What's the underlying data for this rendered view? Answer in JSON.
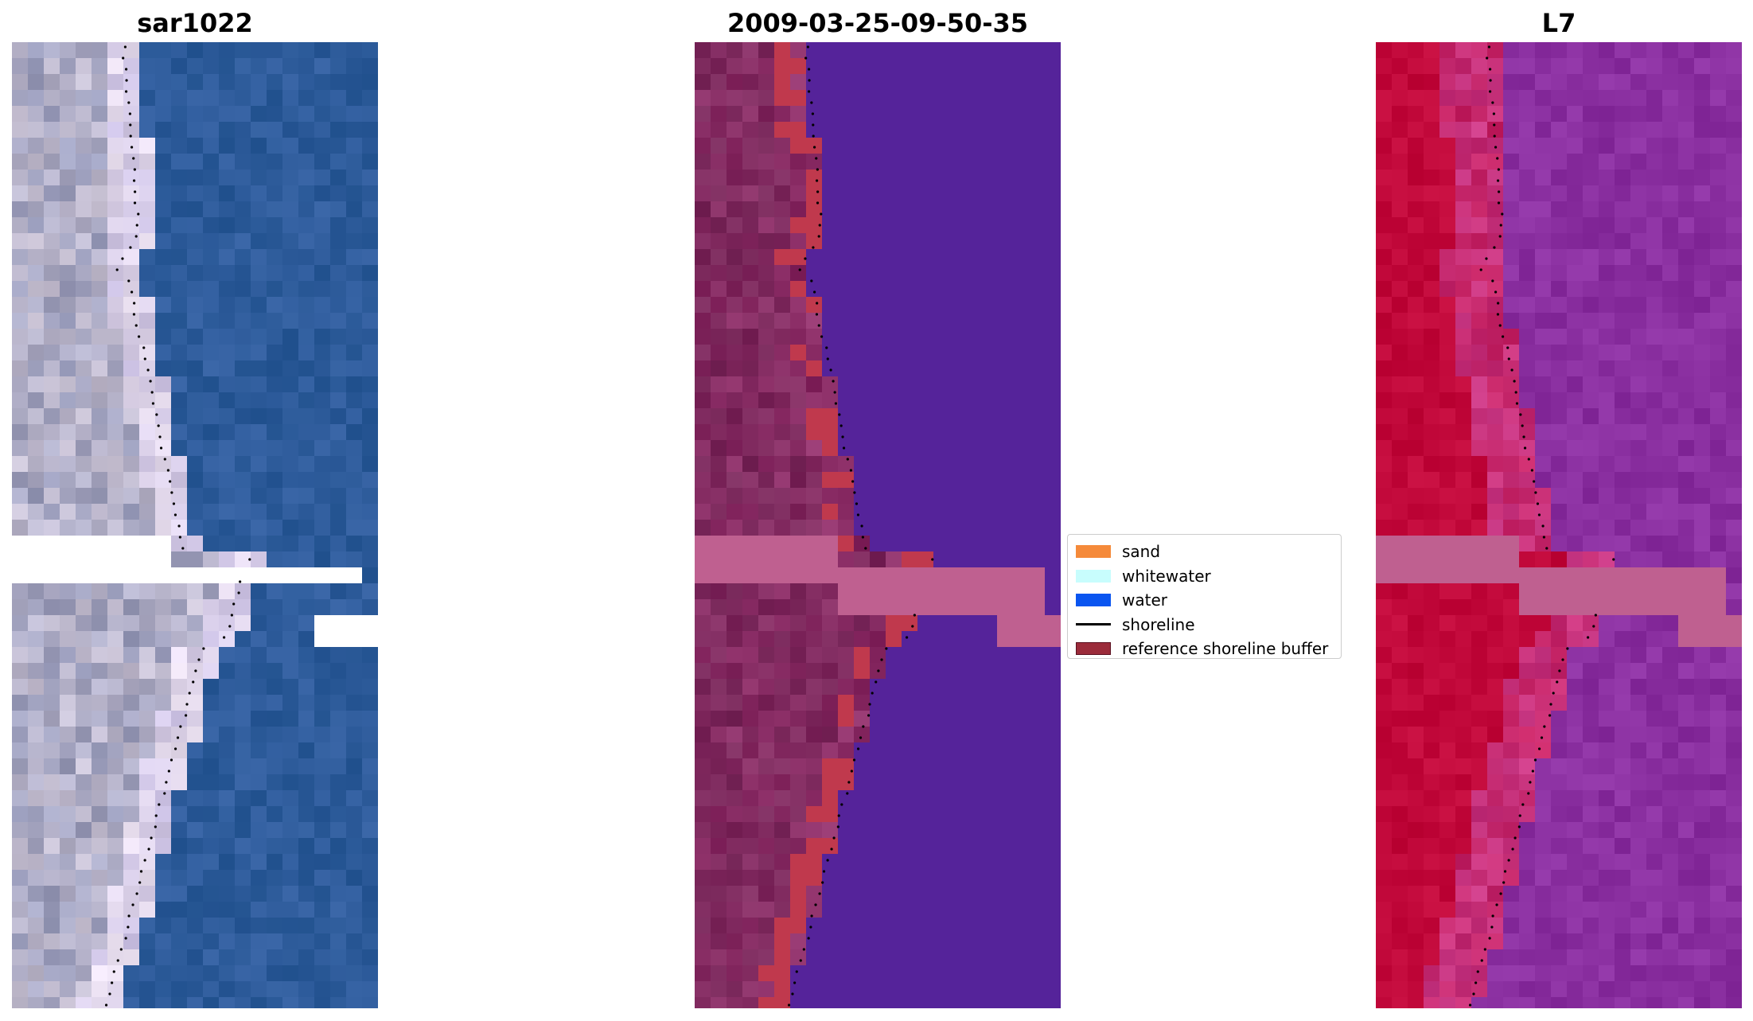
{
  "panels": [
    {
      "id": "rgb",
      "title": "sar1022"
    },
    {
      "id": "classified",
      "title": "2009-03-25-09-50-35"
    },
    {
      "id": "index",
      "title": "L7"
    }
  ],
  "legend": {
    "placement": "center",
    "items": [
      {
        "label": "sand",
        "color": "#f58a3a",
        "type": "patch"
      },
      {
        "label": "whitewater",
        "color": "#c8fdfd",
        "type": "patch"
      },
      {
        "label": "water",
        "color": "#0a55f0",
        "type": "patch"
      },
      {
        "label": "shoreline",
        "color": "#000000",
        "type": "line"
      },
      {
        "label": "reference shoreline buffer",
        "color": "#9b2b3a",
        "type": "patch"
      }
    ]
  },
  "colors": {
    "water_rgb": "#2f5f9c",
    "sand_rgb": "#c9c2d4",
    "water_class": "#55239a",
    "land_class": "#8b2d66",
    "buffer_class": "#c0394d",
    "nodata_band": "#bf6090",
    "index_land": "#c1083a",
    "index_water": "#8a2fa0"
  }
}
